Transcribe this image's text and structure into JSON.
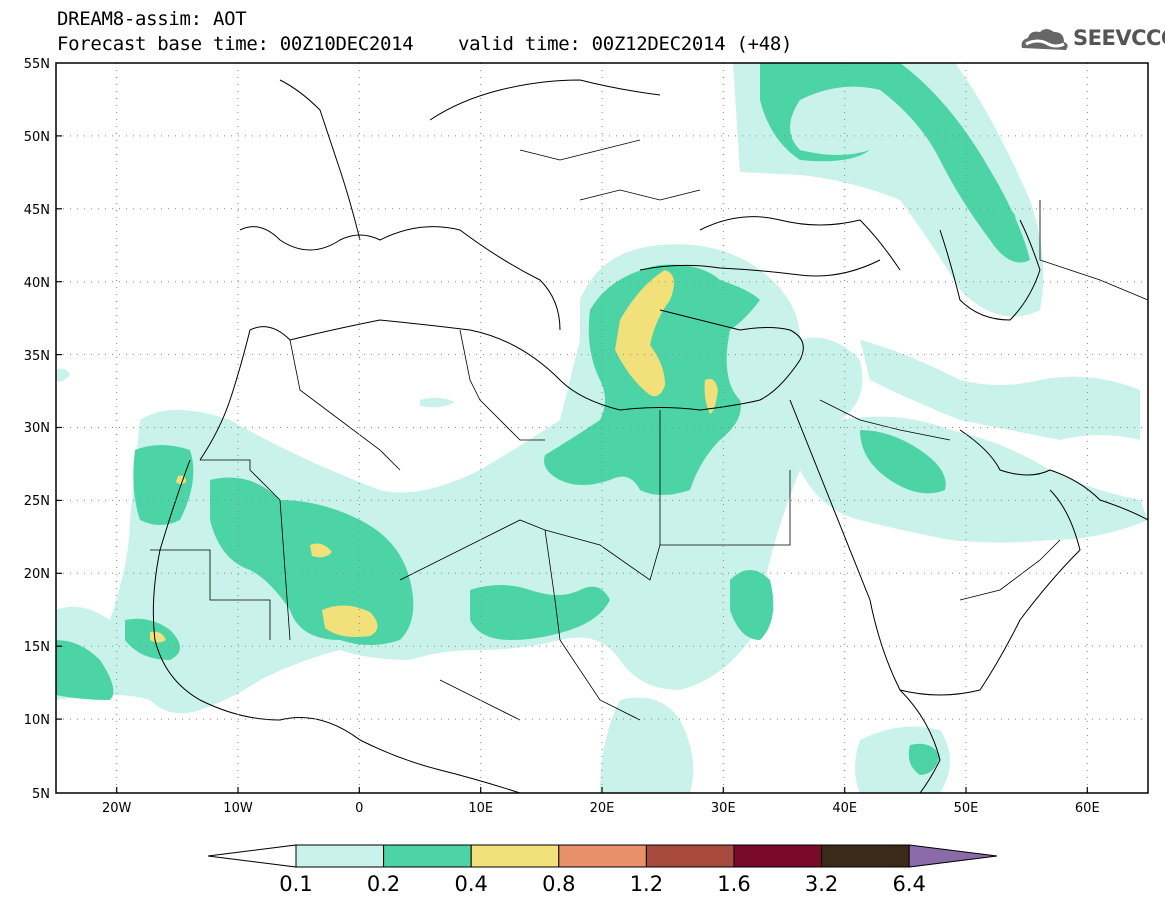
{
  "title": {
    "line1": "DREAM8-assim: AOT",
    "line2": "Forecast base time: 00Z10DEC2014    valid time: 00Z12DEC2014 (+48)"
  },
  "logo": {
    "text": "SEEVCCC",
    "icon": "cloud-icon"
  },
  "map": {
    "lat_labels": [
      "55N",
      "50N",
      "45N",
      "40N",
      "35N",
      "30N",
      "25N",
      "20N",
      "15N",
      "10N",
      "5N"
    ],
    "lon_labels": [
      "20W",
      "10W",
      "0",
      "10E",
      "20E",
      "30E",
      "40E",
      "50E",
      "60E"
    ],
    "lat_range": [
      5,
      55
    ],
    "lon_range": [
      -25,
      65
    ],
    "grid": "dotted"
  },
  "colorbar": {
    "labels": [
      "0.1",
      "0.2",
      "0.4",
      "0.8",
      "1.2",
      "1.6",
      "3.2",
      "6.4"
    ],
    "colors": [
      "#c9f2ea",
      "#4dd4a6",
      "#f2e17a",
      "#e8906a",
      "#a84a3e",
      "#7a0a2a",
      "#3a2a1a",
      "#8a6aa8"
    ],
    "under_color": "#ffffff",
    "over_color": "#8a6aa8"
  }
}
